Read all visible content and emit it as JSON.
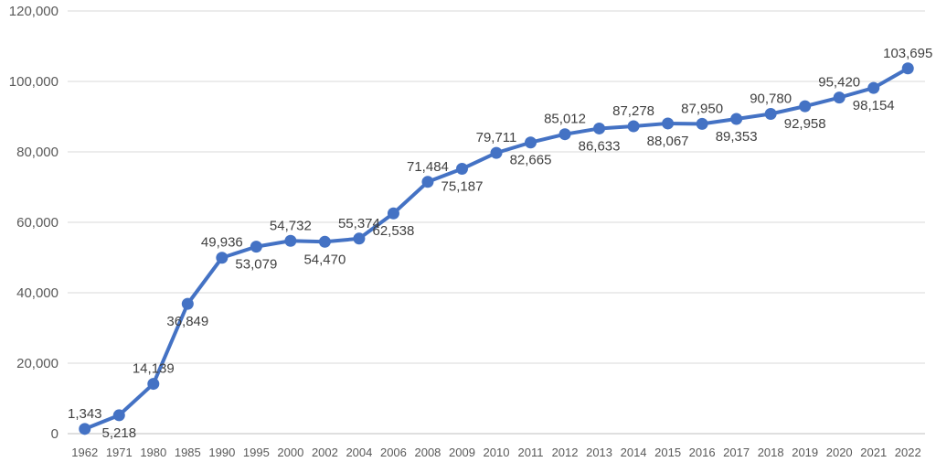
{
  "chart_data": {
    "type": "line",
    "title": "",
    "xlabel": "",
    "ylabel": "",
    "ylim": [
      0,
      120000
    ],
    "yticks": [
      "0",
      "20,000",
      "40,000",
      "60,000",
      "80,000",
      "100,000",
      "120,000"
    ],
    "grid": true,
    "legend": "none",
    "color": "#4472C4",
    "categories": [
      "1962",
      "1971",
      "1980",
      "1985",
      "1990",
      "1995",
      "2000",
      "2002",
      "2004",
      "2006",
      "2008",
      "2009",
      "2010",
      "2011",
      "2012",
      "2013",
      "2014",
      "2015",
      "2016",
      "2017",
      "2018",
      "2019",
      "2020",
      "2021",
      "2022"
    ],
    "values": [
      1343,
      5218,
      14139,
      36849,
      49936,
      53079,
      54732,
      54470,
      55374,
      62538,
      71484,
      75187,
      79711,
      82665,
      85012,
      86633,
      87278,
      88067,
      87950,
      89353,
      90780,
      92958,
      95420,
      98154,
      103695
    ],
    "labels": [
      "1,343",
      "5,218",
      "14,139",
      "36,849",
      "49,936",
      "53,079",
      "54,732",
      "54,470",
      "55,374",
      "62,538",
      "71,484",
      "75,187",
      "79,711",
      "82,665",
      "85,012",
      "86,633",
      "87,278",
      "88,067",
      "87,950",
      "89,353",
      "90,780",
      "92,958",
      "95,420",
      "98,154",
      "103,695"
    ],
    "label_pos": [
      "above",
      "below",
      "above",
      "below",
      "above",
      "below",
      "above",
      "below",
      "above",
      "below",
      "above",
      "below",
      "above",
      "below",
      "above",
      "below",
      "above",
      "below",
      "above",
      "below",
      "above",
      "below",
      "above",
      "below",
      "above"
    ]
  }
}
